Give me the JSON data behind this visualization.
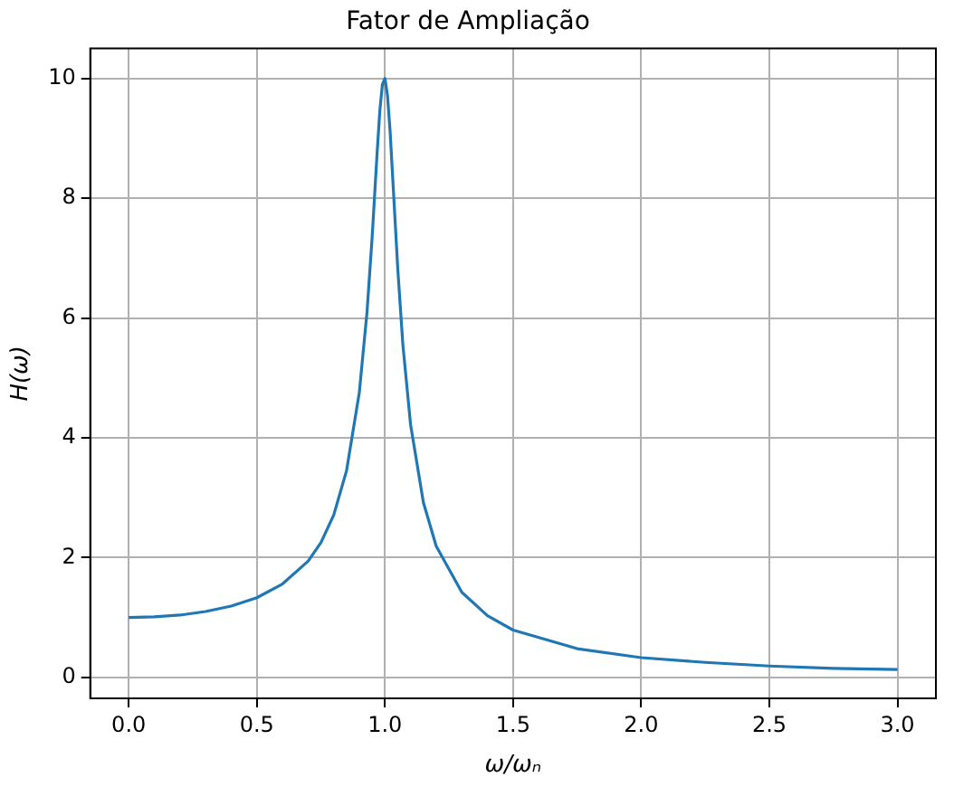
{
  "chart_data": {
    "type": "line",
    "title": "Fator de Ampliação",
    "xlabel": "ω/ωₙ",
    "ylabel": "H(ω)",
    "x": [
      0,
      0.1,
      0.2,
      0.3,
      0.4,
      0.5,
      0.6,
      0.7,
      0.75,
      0.8,
      0.85,
      0.9,
      0.93,
      0.95,
      0.97,
      0.98,
      0.99,
      1.0,
      1.01,
      1.02,
      1.03,
      1.05,
      1.07,
      1.1,
      1.15,
      1.2,
      1.3,
      1.4,
      1.5,
      1.75,
      2.0,
      2.25,
      2.5,
      2.75,
      3.0
    ],
    "series": [
      {
        "color": "#1f77b4",
        "values": [
          1.0,
          1.01,
          1.04,
          1.1,
          1.19,
          1.33,
          1.56,
          1.94,
          2.25,
          2.71,
          3.45,
          4.76,
          6.1,
          7.35,
          8.8,
          9.46,
          9.9,
          10.0,
          9.71,
          9.12,
          8.36,
          6.82,
          5.55,
          4.22,
          2.92,
          2.19,
          1.42,
          1.03,
          0.79,
          0.48,
          0.33,
          0.25,
          0.19,
          0.15,
          0.13
        ]
      }
    ],
    "xlim": [
      -0.15,
      3.15
    ],
    "ylim": [
      -0.35,
      10.5
    ],
    "xticks": [
      {
        "value": 0,
        "label": "0.0"
      },
      0.5,
      {
        "value": 1,
        "label": "1.0"
      },
      1.5,
      {
        "value": 2,
        "label": "2.0"
      },
      2.5,
      {
        "value": 3,
        "label": "3.0"
      }
    ],
    "yticks": [
      0,
      2,
      4,
      6,
      8,
      10
    ],
    "grid": true,
    "legend": false,
    "marker": "none",
    "line_style": "solid"
  }
}
